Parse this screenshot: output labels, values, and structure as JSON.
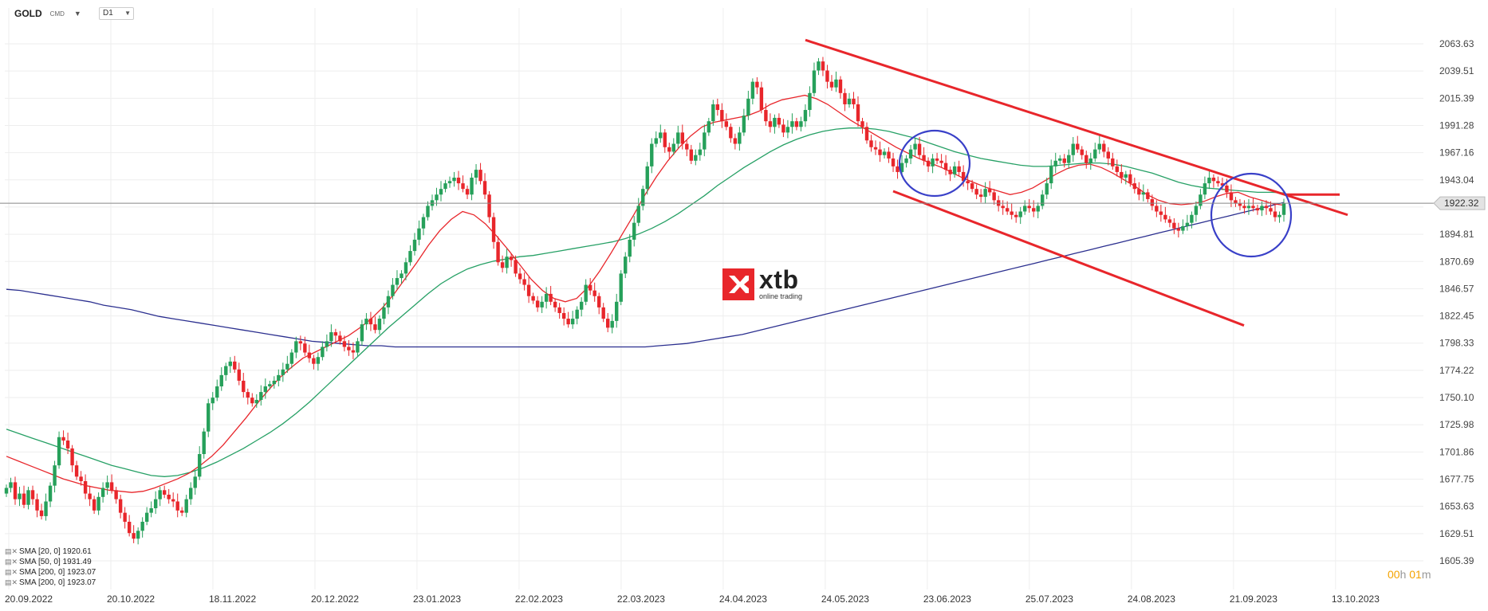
{
  "header": {
    "symbol": "GOLD",
    "symbol_sub": "CMD",
    "timeframe": "D1"
  },
  "brand": {
    "name": "xtb",
    "tagline": "online trading"
  },
  "timer": {
    "hours": "00",
    "h_unit": "h",
    "minutes": "01",
    "m_unit": "m"
  },
  "colors": {
    "bull": "#26a05a",
    "bear": "#e8262b",
    "sma20": "#e8262b",
    "sma50": "#26a065",
    "sma200": "#2b2f8f",
    "annotation_red": "#e8262b",
    "annotation_blue": "#3940c8",
    "current_price_line": "#888888",
    "grid": "#eeeeee"
  },
  "legend": [
    {
      "label": "SMA [20, 0] 1920.61"
    },
    {
      "label": "SMA [50, 0] 1931.49"
    },
    {
      "label": "SMA [200, 0] 1923.07"
    },
    {
      "label": "SMA [200, 0] 1923.07"
    }
  ],
  "current_price": {
    "label": "1922.32",
    "value": 1922.32
  },
  "chart_data": {
    "type": "candlestick",
    "title": "GOLD",
    "timeframe": "D1",
    "y_ticks": [
      2063.63,
      2039.51,
      2015.39,
      1991.28,
      1967.16,
      1943.04,
      1918.93,
      1894.81,
      1870.69,
      1846.57,
      1822.45,
      1798.33,
      1774.22,
      1750.1,
      1725.98,
      1701.86,
      1677.75,
      1653.63,
      1629.51,
      1605.39
    ],
    "y_labels": [
      "2063.63",
      "2039.51",
      "2015.39",
      "1991.28",
      "1967.16",
      "1943.04",
      "",
      "1894.81",
      "1870.69",
      "1846.57",
      "1822.45",
      "1798.33",
      "1774.22",
      "1750.10",
      "1725.98",
      "1701.86",
      "1677.75",
      "1653.63",
      "1629.51",
      "1605.39"
    ],
    "x_labels": [
      "20.09.2022",
      "20.10.2022",
      "18.11.2022",
      "20.12.2022",
      "23.01.2023",
      "22.02.2023",
      "22.03.2023",
      "24.04.2023",
      "24.05.2023",
      "23.06.2023",
      "25.07.2023",
      "24.08.2023",
      "21.09.2023",
      "13.10.2023"
    ],
    "ylim": [
      1605.39,
      2075
    ],
    "closes": [
      1670,
      1675,
      1660,
      1665,
      1655,
      1668,
      1660,
      1650,
      1645,
      1658,
      1672,
      1690,
      1715,
      1712,
      1705,
      1690,
      1680,
      1676,
      1665,
      1660,
      1650,
      1662,
      1670,
      1675,
      1668,
      1660,
      1648,
      1640,
      1630,
      1625,
      1632,
      1640,
      1648,
      1652,
      1660,
      1668,
      1664,
      1660,
      1658,
      1650,
      1648,
      1660,
      1670,
      1680,
      1700,
      1720,
      1745,
      1750,
      1760,
      1770,
      1778,
      1782,
      1775,
      1765,
      1755,
      1750,
      1745,
      1748,
      1755,
      1760,
      1762,
      1765,
      1770,
      1775,
      1780,
      1790,
      1800,
      1798,
      1790,
      1785,
      1780,
      1786,
      1795,
      1800,
      1808,
      1805,
      1800,
      1795,
      1792,
      1790,
      1800,
      1815,
      1820,
      1815,
      1810,
      1820,
      1830,
      1840,
      1850,
      1856,
      1860,
      1870,
      1880,
      1890,
      1900,
      1910,
      1920,
      1925,
      1930,
      1935,
      1940,
      1942,
      1945,
      1940,
      1935,
      1930,
      1945,
      1952,
      1942,
      1930,
      1910,
      1888,
      1870,
      1865,
      1875,
      1872,
      1860,
      1855,
      1850,
      1840,
      1836,
      1830,
      1835,
      1842,
      1835,
      1830,
      1825,
      1820,
      1815,
      1820,
      1828,
      1835,
      1850,
      1845,
      1840,
      1830,
      1820,
      1812,
      1818,
      1835,
      1860,
      1875,
      1890,
      1905,
      1920,
      1935,
      1955,
      1975,
      1980,
      1985,
      1972,
      1968,
      1975,
      1985,
      1975,
      1970,
      1960,
      1965,
      1970,
      1985,
      1995,
      2010,
      2005,
      1995,
      1990,
      1980,
      1975,
      1985,
      2000,
      2015,
      2030,
      2025,
      2005,
      1995,
      1990,
      1998,
      1992,
      1985,
      1990,
      1995,
      1990,
      1995,
      2005,
      2020,
      2040,
      2048,
      2040,
      2030,
      2025,
      2032,
      2020,
      2010,
      2015,
      2010,
      1995,
      1990,
      1978,
      1972,
      1970,
      1965,
      1968,
      1962,
      1955,
      1950,
      1958,
      1962,
      1970,
      1975,
      1965,
      1960,
      1955,
      1962,
      1960,
      1958,
      1952,
      1948,
      1955,
      1950,
      1942,
      1940,
      1935,
      1930,
      1928,
      1935,
      1932,
      1925,
      1920,
      1918,
      1915,
      1912,
      1910,
      1915,
      1920,
      1918,
      1915,
      1920,
      1930,
      1940,
      1955,
      1960,
      1962,
      1958,
      1965,
      1975,
      1970,
      1965,
      1958,
      1962,
      1970,
      1975,
      1968,
      1962,
      1955,
      1950,
      1945,
      1948,
      1940,
      1935,
      1930,
      1932,
      1926,
      1920,
      1915,
      1912,
      1908,
      1905,
      1900,
      1898,
      1902,
      1905,
      1912,
      1920,
      1930,
      1940,
      1945,
      1942,
      1940,
      1938,
      1932,
      1925,
      1922,
      1920,
      1918,
      1920,
      1918,
      1916,
      1920,
      1918,
      1915,
      1910,
      1912,
      1922.32
    ],
    "sma20": [
      1698,
      1694,
      1690,
      1686,
      1682,
      1678,
      1675,
      1672,
      1670,
      1668,
      1667,
      1666,
      1667,
      1670,
      1674,
      1678,
      1683,
      1690,
      1698,
      1708,
      1720,
      1732,
      1745,
      1757,
      1768,
      1777,
      1785,
      1790,
      1795,
      1800,
      1805,
      1812,
      1820,
      1830,
      1842,
      1856,
      1870,
      1885,
      1898,
      1908,
      1915,
      1912,
      1904,
      1893,
      1881,
      1868,
      1855,
      1845,
      1838,
      1835,
      1838,
      1848,
      1862,
      1878,
      1895,
      1912,
      1930,
      1946,
      1960,
      1972,
      1982,
      1990,
      1994,
      1996,
      1998,
      2000,
      2004,
      2010,
      2014,
      2016,
      2018,
      2015,
      2010,
      2003,
      1996,
      1990,
      1984,
      1978,
      1972,
      1967,
      1962,
      1958,
      1954,
      1949,
      1944,
      1940,
      1936,
      1933,
      1930,
      1932,
      1936,
      1942,
      1948,
      1953,
      1956,
      1957,
      1954,
      1949,
      1943,
      1937,
      1930,
      1925,
      1922,
      1921,
      1922,
      1924,
      1928,
      1931,
      1932,
      1928,
      1925,
      1922,
      1920.6
    ],
    "sma50": [
      1722,
      1718,
      1714,
      1710,
      1706,
      1702,
      1698,
      1694,
      1690,
      1687,
      1684,
      1681,
      1680,
      1681,
      1684,
      1688,
      1693,
      1699,
      1705,
      1712,
      1719,
      1727,
      1736,
      1746,
      1757,
      1768,
      1779,
      1790,
      1801,
      1812,
      1822,
      1832,
      1842,
      1851,
      1858,
      1864,
      1868,
      1871,
      1873,
      1875,
      1876,
      1878,
      1880,
      1882,
      1884,
      1886,
      1888,
      1891,
      1895,
      1900,
      1906,
      1913,
      1921,
      1929,
      1938,
      1946,
      1954,
      1961,
      1968,
      1974,
      1979,
      1983,
      1986,
      1988,
      1989,
      1989,
      1988,
      1986,
      1983,
      1980,
      1976,
      1972,
      1968,
      1965,
      1962,
      1960,
      1958,
      1956,
      1955,
      1955,
      1956,
      1957,
      1958,
      1958,
      1957,
      1955,
      1952,
      1949,
      1945,
      1941,
      1938,
      1936,
      1935,
      1934,
      1933,
      1932,
      1932,
      1931.5
    ],
    "sma200": [
      1846,
      1845,
      1843,
      1841,
      1839,
      1837,
      1835,
      1832,
      1830,
      1828,
      1825,
      1822,
      1820,
      1818,
      1816,
      1814,
      1812,
      1810,
      1808,
      1806,
      1804,
      1802,
      1800,
      1799,
      1798,
      1797,
      1796,
      1796,
      1795,
      1795,
      1795,
      1795,
      1795,
      1795,
      1795,
      1795,
      1795,
      1795,
      1795,
      1795,
      1795,
      1795,
      1795,
      1795,
      1795,
      1795,
      1795,
      1796,
      1797,
      1798,
      1800,
      1802,
      1804,
      1806,
      1809,
      1812,
      1815,
      1818,
      1821,
      1824,
      1827,
      1830,
      1833,
      1836,
      1839,
      1842,
      1845,
      1848,
      1851,
      1854,
      1857,
      1860,
      1863,
      1866,
      1869,
      1872,
      1875,
      1878,
      1881,
      1884,
      1887,
      1890,
      1893,
      1896,
      1899,
      1902,
      1905,
      1908,
      1911,
      1914,
      1917,
      1920,
      1923.07
    ],
    "annotations": {
      "channel_upper": [
        [
          1,
          2067
        ],
        [
          1.76,
          1925
        ]
      ],
      "channel_lower": [
        [
          1,
          1933
        ],
        [
          1.6,
          1814
        ]
      ],
      "resistance_level": 1930,
      "circles": [
        {
          "x_index": 0.5,
          "y": 1955
        },
        {
          "x_index": 0.8,
          "y": 1927
        }
      ]
    },
    "xlabel": "",
    "ylabel": "",
    "grid": true,
    "legend_position": "bottom-left"
  }
}
